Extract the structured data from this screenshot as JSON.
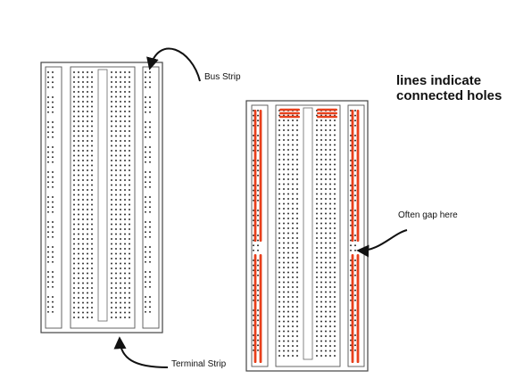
{
  "labels": {
    "bus_strip": "Bus Strip",
    "heading_line1": "lines indicate",
    "heading_line2": "connected holes",
    "often_gap": "Often gap here",
    "terminal_strip": "Terminal Strip"
  },
  "colors": {
    "board_outline": "#444444",
    "hole": "#222222",
    "connection_line": "#e8401c",
    "arrow": "#111111"
  },
  "icons": {
    "left_board": "breadboard",
    "right_board": "breadboard-with-connection-lines",
    "arrows": "curved-arrow"
  }
}
